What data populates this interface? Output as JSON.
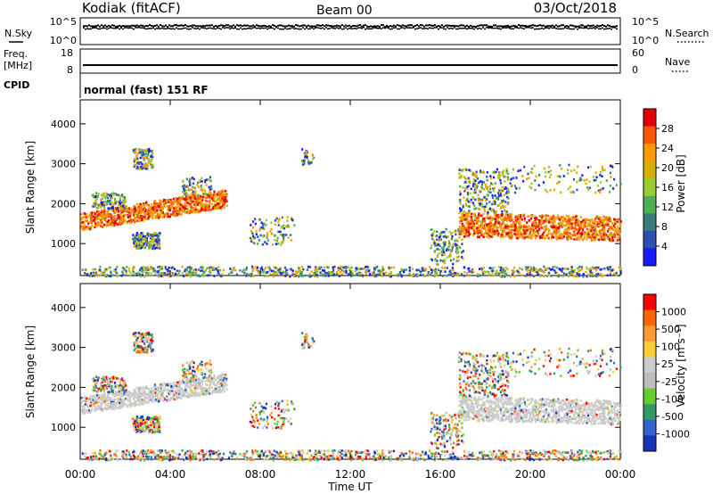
{
  "header": {
    "title": "Kodiak (fitACF)",
    "beam": "Beam 00",
    "date": "03/Oct/2018"
  },
  "left_labels": {
    "nsky": "N.Sky",
    "freq": "Freq.",
    "freq_unit": "[MHz]",
    "cpid": "CPID"
  },
  "right_labels": {
    "nsearch": "N.Search",
    "nave": "Nave"
  },
  "axes_small": {
    "noise_ticks": [
      "10^5",
      "10^0"
    ],
    "freq_ticks": [
      "18",
      "8"
    ],
    "nave_ticks": [
      "60",
      "0"
    ]
  },
  "cpid_text": "normal (fast) 151 RF",
  "colors": {
    "power": [
      "#1a1aff",
      "#2f4fb0",
      "#3a7c7c",
      "#4caf50",
      "#9acd32",
      "#d4b000",
      "#ff9900",
      "#ff5500",
      "#e00000"
    ],
    "velocity": [
      "#ff0000",
      "#ff6600",
      "#ff9933",
      "#ffcc33",
      "#cccccc",
      "#bdbdbd",
      "#66cc33",
      "#339966",
      "#3366cc",
      "#1a33b3"
    ]
  },
  "chart_data": [
    {
      "type": "heatmap",
      "ylabel": "Slant Range [km]",
      "xlabel": "Time UT",
      "x_ticks": [
        "00:00",
        "04:00",
        "08:00",
        "12:00",
        "16:00",
        "20:00",
        "00:00"
      ],
      "y_ticks": [
        1000,
        2000,
        3000,
        4000
      ],
      "ylim": [
        200,
        4600
      ],
      "xlim_hours": [
        0,
        24
      ],
      "colorbar": {
        "label": "Power [dB]",
        "ticks": [
          4,
          8,
          12,
          16,
          20,
          24,
          28
        ],
        "range": [
          0,
          32
        ]
      }
    },
    {
      "type": "heatmap",
      "ylabel": "Slant Range [km]",
      "xlabel": "Time UT",
      "x_ticks": [
        "00:00",
        "04:00",
        "08:00",
        "12:00",
        "16:00",
        "20:00",
        "00:00"
      ],
      "y_ticks": [
        1000,
        2000,
        3000,
        4000
      ],
      "ylim": [
        200,
        4600
      ],
      "xlim_hours": [
        0,
        24
      ],
      "colorbar": {
        "label": "Velocity [m s⁻¹]",
        "ticks": [
          "1000",
          "500",
          "100",
          "25",
          "-25",
          "-100",
          "-500",
          "-1000"
        ]
      }
    }
  ]
}
